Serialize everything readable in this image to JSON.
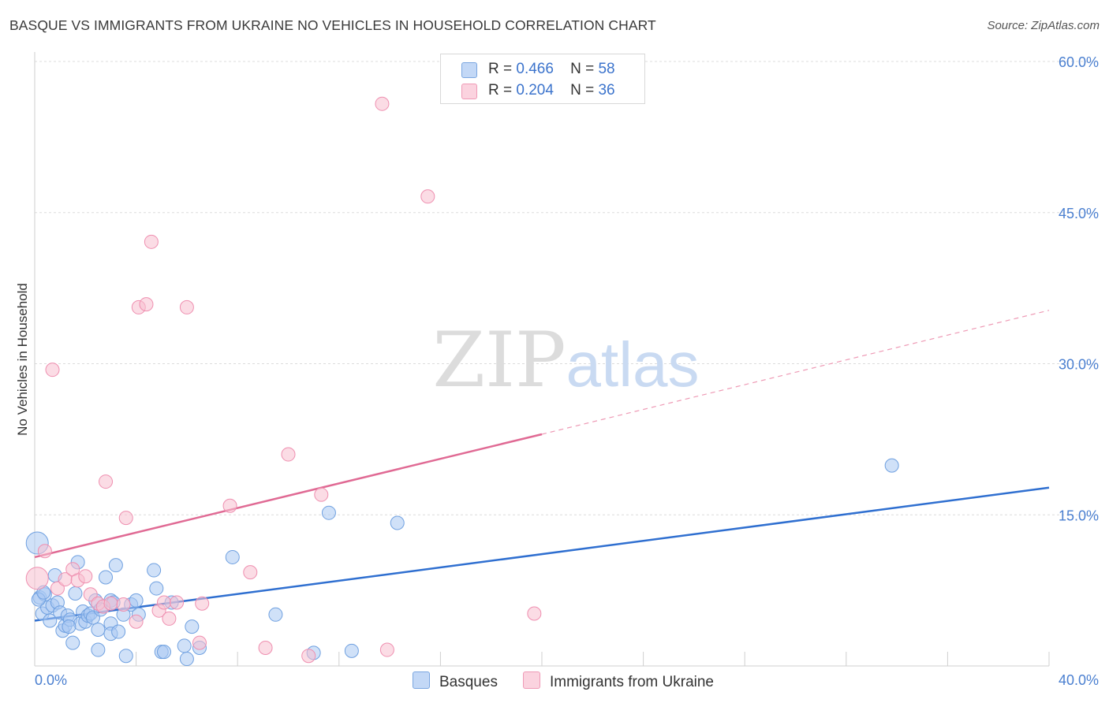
{
  "header": {
    "title": "BASQUE VS IMMIGRANTS FROM UKRAINE NO VEHICLES IN HOUSEHOLD CORRELATION CHART",
    "source": "Source: ZipAtlas.com"
  },
  "legend": {
    "rows": [
      {
        "r_label": "R =",
        "r_value": "0.466",
        "n_label": "N =",
        "n_value": "58",
        "color": "#a9c8f2"
      },
      {
        "r_label": "R =",
        "r_value": "0.204",
        "n_label": "N =",
        "n_value": "36",
        "color": "#f8bfd0"
      }
    ]
  },
  "bottom_legend": {
    "series_a": "Basques",
    "series_b": "Immigrants from Ukraine"
  },
  "watermark": {
    "zip": "ZIP",
    "atlas": "atlas"
  },
  "chart_data": {
    "type": "scatter",
    "title": "BASQUE VS IMMIGRANTS FROM UKRAINE NO VEHICLES IN HOUSEHOLD CORRELATION CHART",
    "xlabel": "",
    "ylabel": "No Vehicles in Household",
    "xlim": [
      0,
      40
    ],
    "ylim": [
      0,
      60
    ],
    "x_tick_labels": [
      "0.0%",
      "40.0%"
    ],
    "y_ticks": [
      15,
      30,
      45,
      60
    ],
    "y_tick_labels": [
      "15.0%",
      "30.0%",
      "45.0%",
      "60.0%"
    ],
    "grid": true,
    "legend_position": "top-center",
    "series": [
      {
        "name": "Basques",
        "color": "#6fa0e0",
        "fill": "#a9c8f2",
        "trend": {
          "x": [
            0,
            40
          ],
          "y": [
            4.5,
            17.7
          ]
        },
        "points": [
          [
            0.1,
            12.2
          ],
          [
            0.2,
            6.8
          ],
          [
            0.3,
            5.2
          ],
          [
            0.4,
            7.1
          ],
          [
            0.5,
            5.8
          ],
          [
            0.6,
            4.5
          ],
          [
            0.7,
            6.0
          ],
          [
            0.8,
            9.0
          ],
          [
            0.9,
            6.3
          ],
          [
            1.0,
            5.3
          ],
          [
            1.1,
            3.5
          ],
          [
            1.2,
            4.0
          ],
          [
            1.3,
            5.0
          ],
          [
            1.4,
            4.6
          ],
          [
            1.5,
            2.3
          ],
          [
            1.6,
            7.2
          ],
          [
            1.7,
            10.3
          ],
          [
            1.8,
            4.2
          ],
          [
            1.9,
            5.4
          ],
          [
            2.0,
            4.4
          ],
          [
            2.1,
            5.0
          ],
          [
            2.2,
            5.2
          ],
          [
            2.3,
            4.8
          ],
          [
            2.4,
            6.5
          ],
          [
            2.5,
            3.6
          ],
          [
            2.6,
            5.6
          ],
          [
            2.5,
            1.6
          ],
          [
            2.8,
            8.8
          ],
          [
            3.0,
            4.2
          ],
          [
            3.0,
            3.2
          ],
          [
            3.2,
            10.0
          ],
          [
            3.3,
            3.4
          ],
          [
            3.0,
            6.5
          ],
          [
            3.1,
            6.3
          ],
          [
            3.5,
            5.1
          ],
          [
            3.8,
            6.1
          ],
          [
            3.6,
            1.0
          ],
          [
            4.0,
            6.5
          ],
          [
            4.1,
            5.1
          ],
          [
            4.7,
            9.5
          ],
          [
            4.8,
            7.7
          ],
          [
            5.0,
            1.4
          ],
          [
            5.1,
            1.4
          ],
          [
            5.4,
            6.3
          ],
          [
            5.9,
            2.0
          ],
          [
            6.0,
            0.7
          ],
          [
            6.2,
            3.9
          ],
          [
            6.5,
            1.8
          ],
          [
            7.8,
            10.8
          ],
          [
            9.5,
            5.1
          ],
          [
            11.0,
            1.3
          ],
          [
            11.6,
            15.2
          ],
          [
            12.5,
            1.5
          ],
          [
            14.3,
            14.2
          ],
          [
            33.8,
            19.9
          ],
          [
            0.15,
            6.6
          ],
          [
            0.35,
            7.3
          ],
          [
            1.35,
            3.9
          ]
        ]
      },
      {
        "name": "Immigrants from Ukraine",
        "color": "#ef8fb0",
        "fill": "#f8bfd0",
        "trend": {
          "x": [
            0,
            20
          ],
          "y": [
            10.8,
            23.0
          ]
        },
        "trend_dashed": {
          "x": [
            20,
            40
          ],
          "y": [
            23.0,
            35.3
          ]
        },
        "points": [
          [
            0.1,
            8.7
          ],
          [
            0.4,
            11.4
          ],
          [
            0.7,
            29.4
          ],
          [
            0.9,
            7.7
          ],
          [
            1.2,
            8.6
          ],
          [
            1.5,
            9.6
          ],
          [
            1.7,
            8.5
          ],
          [
            2.0,
            8.9
          ],
          [
            2.2,
            7.1
          ],
          [
            2.5,
            6.2
          ],
          [
            2.7,
            5.9
          ],
          [
            2.8,
            18.3
          ],
          [
            3.0,
            6.2
          ],
          [
            3.5,
            6.1
          ],
          [
            3.6,
            14.7
          ],
          [
            4.0,
            4.4
          ],
          [
            4.1,
            35.6
          ],
          [
            4.4,
            35.9
          ],
          [
            4.6,
            42.1
          ],
          [
            4.9,
            5.5
          ],
          [
            5.1,
            6.3
          ],
          [
            5.3,
            4.7
          ],
          [
            5.6,
            6.3
          ],
          [
            6.0,
            35.6
          ],
          [
            6.5,
            2.3
          ],
          [
            6.6,
            6.2
          ],
          [
            7.7,
            15.9
          ],
          [
            8.5,
            9.3
          ],
          [
            9.1,
            1.8
          ],
          [
            10.0,
            21.0
          ],
          [
            10.8,
            1.0
          ],
          [
            11.3,
            17.0
          ],
          [
            13.7,
            55.8
          ],
          [
            13.9,
            1.6
          ],
          [
            15.5,
            46.6
          ],
          [
            19.7,
            5.2
          ]
        ]
      }
    ]
  }
}
